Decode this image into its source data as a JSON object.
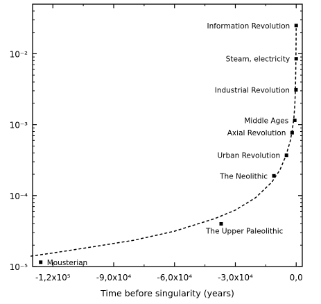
{
  "chart_data": {
    "type": "scatter",
    "title": "",
    "xlabel": "Time before singularity (years)",
    "ylabel": "",
    "xlim": [
      -130000,
      3000
    ],
    "ylim": [
      1e-05,
      0.05
    ],
    "y_scale": "log",
    "grid": false,
    "legend": "none",
    "x_ticks": [
      {
        "value": -120000,
        "label": "-1,2x10⁵"
      },
      {
        "value": -90000,
        "label": "-9,0x10⁴"
      },
      {
        "value": -60000,
        "label": "-6,0x10⁴"
      },
      {
        "value": -30000,
        "label": "-3,0x10⁴"
      },
      {
        "value": 0,
        "label": "0,0"
      }
    ],
    "y_ticks": [
      {
        "value": 1e-05,
        "label": "10⁻⁵"
      },
      {
        "value": 0.0001,
        "label": "10⁻⁴"
      },
      {
        "value": 0.001,
        "label": "10⁻³"
      },
      {
        "value": 0.01,
        "label": "10⁻²"
      }
    ],
    "points": [
      {
        "label": "Information Revolution",
        "x": 0,
        "y": 0.025
      },
      {
        "label": "Steam, electricity",
        "x": 0,
        "y": 0.0085
      },
      {
        "label": "Industrial Revolution",
        "x": -100,
        "y": 0.0031
      },
      {
        "label": "Middle Ages",
        "x": -700,
        "y": 0.00115
      },
      {
        "label": "Axial Revolution",
        "x": -2000,
        "y": 0.00077
      },
      {
        "label": "Urban Revolution",
        "x": -4800,
        "y": 0.00037
      },
      {
        "label": "The Neolithic",
        "x": -11000,
        "y": 0.00019
      },
      {
        "label": "The Upper Paleolithic",
        "x": -37000,
        "y": 4e-05
      },
      {
        "label": "Mousterian",
        "x": -126000,
        "y": 1.15e-05
      }
    ],
    "fit_curve": {
      "style": "dashed",
      "x": [
        -131000,
        -120000,
        -100000,
        -80000,
        -60000,
        -40000,
        -30000,
        -20000,
        -12000,
        -8000,
        -5000,
        -3000,
        -2000,
        -1200,
        -700,
        -400,
        -200,
        -100,
        -50,
        0
      ],
      "y": [
        1.4e-05,
        1.55e-05,
        1.9e-05,
        2.35e-05,
        3.15e-05,
        4.75e-05,
        6.25e-05,
        9.35e-05,
        0.000155,
        0.00023,
        0.00037,
        0.00058,
        0.00082,
        0.00118,
        0.00185,
        0.0031,
        0.0059,
        0.0105,
        0.016,
        0.026
      ]
    }
  }
}
